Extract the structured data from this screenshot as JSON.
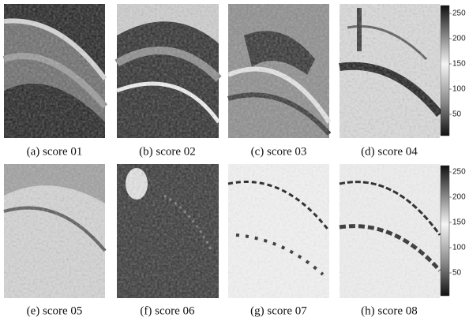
{
  "panels": [
    {
      "caption": "(a) score 01"
    },
    {
      "caption": "(b) score 02"
    },
    {
      "caption": "(c) score 03"
    },
    {
      "caption": "(d) score 04"
    },
    {
      "caption": "(e) score 05"
    },
    {
      "caption": "(f) score 06"
    },
    {
      "caption": "(g) score 07"
    },
    {
      "caption": "(h) score 08"
    }
  ],
  "colorbars": [
    {
      "ticks": [
        250,
        200,
        150,
        100,
        50
      ]
    },
    {
      "ticks": [
        250,
        200,
        150,
        100,
        50
      ]
    }
  ]
}
